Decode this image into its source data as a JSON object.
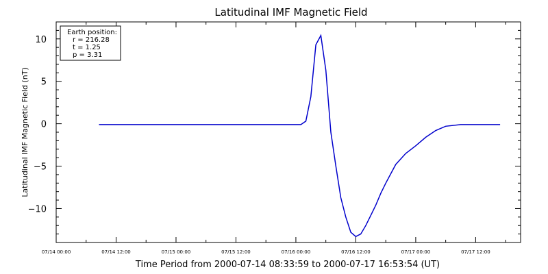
{
  "chart_data": {
    "type": "line",
    "title": "Latitudinal IMF Magnetic Field",
    "xlabel": "Time Period from 2000-07-14 08:33:59 to 2000-07-17 16:53:54 (UT)",
    "ylabel": "Latitudinal IMF Magnetic Field (nT)",
    "xlim_hours_since": "07/14 00:00",
    "xlim": [
      "07/14 00:00",
      "07/17 21:00"
    ],
    "ylim": [
      -14.0,
      12.0
    ],
    "x_tick_labels": [
      "07/14 00:00",
      "07/14 12:00",
      "07/15 00:00",
      "07/15 12:00",
      "07/16 00:00",
      "07/16 12:00",
      "07/17 00:00",
      "07/17 12:00"
    ],
    "y_tick_labels": [
      "10",
      "5",
      "0",
      "−5",
      "−10"
    ],
    "y_tick_values": [
      10,
      5,
      0,
      -5,
      -10
    ],
    "legend": {
      "heading": "Earth position:",
      "lines": [
        "r = 216.28",
        "t = 1.25",
        "p = 3.31"
      ],
      "placement": "top-left"
    },
    "grid": false,
    "series": [
      {
        "name": "",
        "color": "#0000cc",
        "x": [
          "07/14 08:34",
          "07/15 00:00",
          "07/15 12:00",
          "07/16 00:00",
          "07/16 01:00",
          "07/16 02:00",
          "07/16 03:00",
          "07/16 04:00",
          "07/16 05:00",
          "07/16 06:00",
          "07/16 07:00",
          "07/16 08:00",
          "07/16 09:00",
          "07/16 10:00",
          "07/16 11:00",
          "07/16 12:00",
          "07/16 13:00",
          "07/16 14:00",
          "07/16 15:00",
          "07/16 16:00",
          "07/16 17:00",
          "07/16 18:00",
          "07/16 20:00",
          "07/16 22:00",
          "07/17 00:00",
          "07/17 02:00",
          "07/17 04:00",
          "07/17 06:00",
          "07/17 09:00",
          "07/17 12:00",
          "07/17 16:54"
        ],
        "y": [
          -0.1,
          -0.1,
          -0.1,
          -0.1,
          -0.1,
          0.3,
          3.2,
          9.3,
          10.4,
          6.3,
          -1.0,
          -5.0,
          -8.7,
          -11.0,
          -12.8,
          -13.3,
          -13.0,
          -12.0,
          -10.8,
          -9.6,
          -8.2,
          -7.0,
          -4.8,
          -3.5,
          -2.6,
          -1.6,
          -0.8,
          -0.3,
          -0.1,
          -0.1,
          -0.1
        ]
      }
    ]
  }
}
